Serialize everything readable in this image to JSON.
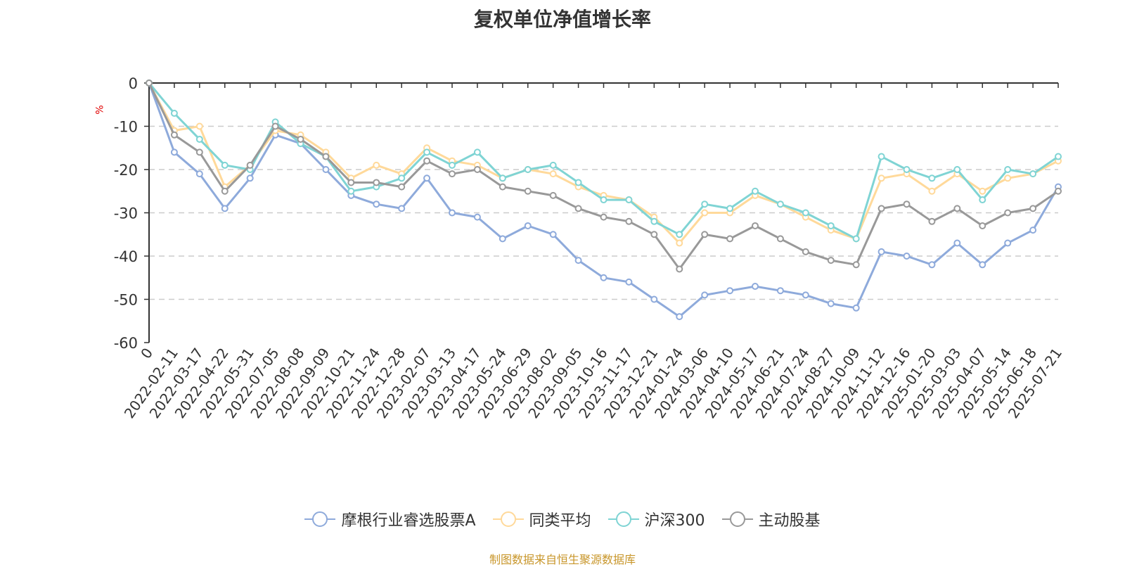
{
  "chart_data": {
    "type": "line",
    "title": "复权单位净值增长率",
    "ylabel": "%",
    "ylim": [
      -60,
      0
    ],
    "yticks": [
      0,
      -10,
      -20,
      -30,
      -40,
      -50,
      -60
    ],
    "grid": true,
    "legend_position": "bottom",
    "x_tick_labels": [
      "0",
      "2022-02-11",
      "2022-03-17",
      "2022-04-22",
      "2022-05-31",
      "2022-07-05",
      "2022-08-08",
      "2022-09-09",
      "2022-10-21",
      "2022-11-24",
      "2022-12-28",
      "2023-02-07",
      "2023-03-13",
      "2023-04-17",
      "2023-05-24",
      "2023-06-29",
      "2023-08-02",
      "2023-09-05",
      "2023-10-16",
      "2023-11-17",
      "2023-12-21",
      "2024-01-24",
      "2024-03-06",
      "2024-04-10",
      "2024-05-17",
      "2024-06-21",
      "2024-07-24",
      "2024-08-27",
      "2024-10-09",
      "2024-11-12",
      "2024-12-16",
      "2025-01-20",
      "2025-03-03",
      "2025-04-07",
      "2025-05-14",
      "2025-06-18",
      "2025-07-21"
    ],
    "series": [
      {
        "name": "摩根行业睿选股票A",
        "color": "#8eaadb",
        "values": [
          0,
          -16,
          -21,
          -29,
          -22,
          -12,
          -14,
          -20,
          -26,
          -28,
          -29,
          -22,
          -30,
          -31,
          -36,
          -33,
          -35,
          -41,
          -45,
          -46,
          -50,
          -54,
          -49,
          -48,
          -47,
          -48,
          -49,
          -51,
          -52,
          -39,
          -40,
          -42,
          -37,
          -42,
          -37,
          -34,
          -24
        ]
      },
      {
        "name": "同类平均",
        "color": "#ffd99a",
        "values": [
          0,
          -11,
          -10,
          -24,
          -19,
          -11,
          -12,
          -16,
          -22,
          -19,
          -21,
          -15,
          -18,
          -19,
          -22,
          -20,
          -21,
          -24,
          -26,
          -27,
          -31,
          -37,
          -30,
          -30,
          -26,
          -28,
          -31,
          -34,
          -36,
          -22,
          -21,
          -25,
          -21,
          -25,
          -22,
          -21,
          -18
        ]
      },
      {
        "name": "沪深300",
        "color": "#7fd4d4",
        "values": [
          0,
          -7,
          -13,
          -19,
          -20,
          -9,
          -14,
          -17,
          -25,
          -24,
          -22,
          -16,
          -19,
          -16,
          -22,
          -20,
          -19,
          -23,
          -27,
          -27,
          -32,
          -35,
          -28,
          -29,
          -25,
          -28,
          -30,
          -33,
          -36,
          -17,
          -20,
          -22,
          -20,
          -27,
          -20,
          -21,
          -17
        ]
      },
      {
        "name": "主动股基",
        "color": "#999999",
        "values": [
          0,
          -12,
          -16,
          -25,
          -19,
          -10,
          -13,
          -17,
          -23,
          -23,
          -24,
          -18,
          -21,
          -20,
          -24,
          -25,
          -26,
          -29,
          -31,
          -32,
          -35,
          -43,
          -35,
          -36,
          -33,
          -36,
          -39,
          -41,
          -42,
          -29,
          -28,
          -32,
          -29,
          -33,
          -30,
          -29,
          -25
        ]
      }
    ]
  },
  "legend": {
    "s1": "摩根行业睿选股票A",
    "s2": "同类平均",
    "s3": "沪深300",
    "s4": "主动股基"
  },
  "source": "制图数据来自恒生聚源数据库"
}
